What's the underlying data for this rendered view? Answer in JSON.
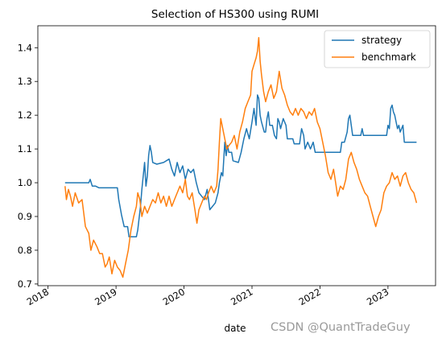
{
  "chart_data": {
    "type": "line",
    "title": "Selection of HS300 using RUMI",
    "xlabel": "date",
    "ylabel": "",
    "xlim": [
      2017.85,
      2023.7
    ],
    "ylim": [
      0.695,
      1.465
    ],
    "x_ticks": [
      {
        "value": 2018,
        "label": "2018"
      },
      {
        "value": 2019,
        "label": "2019"
      },
      {
        "value": 2020,
        "label": "2020"
      },
      {
        "value": 2021,
        "label": "2021"
      },
      {
        "value": 2022,
        "label": "2022"
      },
      {
        "value": 2023,
        "label": "2023"
      }
    ],
    "y_ticks": [
      {
        "value": 0.7,
        "label": "0.7"
      },
      {
        "value": 0.8,
        "label": "0.8"
      },
      {
        "value": 0.9,
        "label": "0.9"
      },
      {
        "value": 1.0,
        "label": "1.0"
      },
      {
        "value": 1.1,
        "label": "1.1"
      },
      {
        "value": 1.2,
        "label": "1.2"
      },
      {
        "value": 1.3,
        "label": "1.3"
      },
      {
        "value": 1.4,
        "label": "1.4"
      }
    ],
    "grid": false,
    "legend_position": "top-right",
    "series": [
      {
        "name": "strategy",
        "color": "#1f77b4",
        "points": [
          [
            2018.25,
            1.0
          ],
          [
            2018.6,
            1.0
          ],
          [
            2018.62,
            1.01
          ],
          [
            2018.65,
            0.99
          ],
          [
            2018.7,
            0.99
          ],
          [
            2018.75,
            0.985
          ],
          [
            2019.02,
            0.985
          ],
          [
            2019.04,
            0.95
          ],
          [
            2019.08,
            0.905
          ],
          [
            2019.12,
            0.87
          ],
          [
            2019.17,
            0.87
          ],
          [
            2019.19,
            0.84
          ],
          [
            2019.3,
            0.84
          ],
          [
            2019.32,
            0.86
          ],
          [
            2019.36,
            0.93
          ],
          [
            2019.38,
            0.98
          ],
          [
            2019.4,
            1.02
          ],
          [
            2019.42,
            1.06
          ],
          [
            2019.44,
            0.99
          ],
          [
            2019.46,
            1.02
          ],
          [
            2019.48,
            1.08
          ],
          [
            2019.5,
            1.11
          ],
          [
            2019.52,
            1.09
          ],
          [
            2019.54,
            1.06
          ],
          [
            2019.6,
            1.055
          ],
          [
            2019.7,
            1.06
          ],
          [
            2019.78,
            1.07
          ],
          [
            2019.82,
            1.04
          ],
          [
            2019.86,
            1.02
          ],
          [
            2019.9,
            1.06
          ],
          [
            2019.94,
            1.03
          ],
          [
            2019.98,
            1.05
          ],
          [
            2020.02,
            1.01
          ],
          [
            2020.06,
            1.04
          ],
          [
            2020.1,
            1.03
          ],
          [
            2020.14,
            1.04
          ],
          [
            2020.18,
            1.0
          ],
          [
            2020.22,
            0.97
          ],
          [
            2020.26,
            0.96
          ],
          [
            2020.3,
            0.95
          ],
          [
            2020.34,
            0.98
          ],
          [
            2020.38,
            0.92
          ],
          [
            2020.42,
            0.93
          ],
          [
            2020.46,
            0.94
          ],
          [
            2020.5,
            0.97
          ],
          [
            2020.52,
            1.0
          ],
          [
            2020.55,
            1.03
          ],
          [
            2020.57,
            1.02
          ],
          [
            2020.6,
            1.12
          ],
          [
            2020.62,
            1.08
          ],
          [
            2020.64,
            1.11
          ],
          [
            2020.66,
            1.09
          ],
          [
            2020.7,
            1.09
          ],
          [
            2020.72,
            1.065
          ],
          [
            2020.8,
            1.06
          ],
          [
            2020.84,
            1.09
          ],
          [
            2020.88,
            1.13
          ],
          [
            2020.92,
            1.16
          ],
          [
            2020.96,
            1.13
          ],
          [
            2021.0,
            1.18
          ],
          [
            2021.03,
            1.22
          ],
          [
            2021.06,
            1.17
          ],
          [
            2021.08,
            1.26
          ],
          [
            2021.1,
            1.25
          ],
          [
            2021.12,
            1.2
          ],
          [
            2021.14,
            1.18
          ],
          [
            2021.18,
            1.15
          ],
          [
            2021.2,
            1.15
          ],
          [
            2021.22,
            1.19
          ],
          [
            2021.24,
            1.21
          ],
          [
            2021.26,
            1.17
          ],
          [
            2021.3,
            1.17
          ],
          [
            2021.33,
            1.14
          ],
          [
            2021.36,
            1.13
          ],
          [
            2021.38,
            1.19
          ],
          [
            2021.4,
            1.18
          ],
          [
            2021.42,
            1.16
          ],
          [
            2021.46,
            1.19
          ],
          [
            2021.5,
            1.17
          ],
          [
            2021.52,
            1.13
          ],
          [
            2021.6,
            1.13
          ],
          [
            2021.62,
            1.115
          ],
          [
            2021.7,
            1.115
          ],
          [
            2021.73,
            1.16
          ],
          [
            2021.76,
            1.14
          ],
          [
            2021.78,
            1.1
          ],
          [
            2021.82,
            1.12
          ],
          [
            2021.86,
            1.1
          ],
          [
            2021.9,
            1.12
          ],
          [
            2021.93,
            1.09
          ],
          [
            2022.3,
            1.09
          ],
          [
            2022.32,
            1.12
          ],
          [
            2022.36,
            1.12
          ],
          [
            2022.4,
            1.15
          ],
          [
            2022.42,
            1.19
          ],
          [
            2022.44,
            1.2
          ],
          [
            2022.46,
            1.17
          ],
          [
            2022.48,
            1.14
          ],
          [
            2022.6,
            1.14
          ],
          [
            2022.62,
            1.16
          ],
          [
            2022.64,
            1.14
          ],
          [
            2022.98,
            1.14
          ],
          [
            2023.0,
            1.17
          ],
          [
            2023.02,
            1.16
          ],
          [
            2023.04,
            1.22
          ],
          [
            2023.06,
            1.23
          ],
          [
            2023.08,
            1.21
          ],
          [
            2023.1,
            1.2
          ],
          [
            2023.12,
            1.18
          ],
          [
            2023.14,
            1.16
          ],
          [
            2023.16,
            1.17
          ],
          [
            2023.18,
            1.15
          ],
          [
            2023.22,
            1.17
          ],
          [
            2023.24,
            1.12
          ],
          [
            2023.42,
            1.12
          ]
        ]
      },
      {
        "name": "benchmark",
        "color": "#ff7f0e",
        "points": [
          [
            2018.25,
            0.99
          ],
          [
            2018.27,
            0.95
          ],
          [
            2018.3,
            0.98
          ],
          [
            2018.33,
            0.96
          ],
          [
            2018.36,
            0.93
          ],
          [
            2018.4,
            0.97
          ],
          [
            2018.45,
            0.94
          ],
          [
            2018.5,
            0.95
          ],
          [
            2018.55,
            0.87
          ],
          [
            2018.6,
            0.85
          ],
          [
            2018.63,
            0.8
          ],
          [
            2018.67,
            0.83
          ],
          [
            2018.72,
            0.81
          ],
          [
            2018.76,
            0.79
          ],
          [
            2018.8,
            0.79
          ],
          [
            2018.84,
            0.75
          ],
          [
            2018.87,
            0.76
          ],
          [
            2018.9,
            0.78
          ],
          [
            2018.94,
            0.73
          ],
          [
            2018.98,
            0.77
          ],
          [
            2019.02,
            0.75
          ],
          [
            2019.06,
            0.74
          ],
          [
            2019.1,
            0.72
          ],
          [
            2019.14,
            0.76
          ],
          [
            2019.18,
            0.8
          ],
          [
            2019.22,
            0.86
          ],
          [
            2019.26,
            0.9
          ],
          [
            2019.3,
            0.93
          ],
          [
            2019.32,
            0.97
          ],
          [
            2019.35,
            0.95
          ],
          [
            2019.38,
            0.9
          ],
          [
            2019.42,
            0.93
          ],
          [
            2019.46,
            0.91
          ],
          [
            2019.5,
            0.93
          ],
          [
            2019.54,
            0.95
          ],
          [
            2019.58,
            0.94
          ],
          [
            2019.62,
            0.97
          ],
          [
            2019.66,
            0.94
          ],
          [
            2019.7,
            0.96
          ],
          [
            2019.74,
            0.93
          ],
          [
            2019.78,
            0.96
          ],
          [
            2019.82,
            0.93
          ],
          [
            2019.86,
            0.95
          ],
          [
            2019.9,
            0.97
          ],
          [
            2019.94,
            0.99
          ],
          [
            2019.98,
            0.97
          ],
          [
            2020.02,
            1.01
          ],
          [
            2020.05,
            0.96
          ],
          [
            2020.08,
            0.95
          ],
          [
            2020.12,
            0.97
          ],
          [
            2020.16,
            0.92
          ],
          [
            2020.19,
            0.88
          ],
          [
            2020.22,
            0.92
          ],
          [
            2020.26,
            0.94
          ],
          [
            2020.3,
            0.96
          ],
          [
            2020.33,
            0.95
          ],
          [
            2020.36,
            0.97
          ],
          [
            2020.4,
            0.99
          ],
          [
            2020.44,
            0.97
          ],
          [
            2020.48,
            0.99
          ],
          [
            2020.5,
            1.04
          ],
          [
            2020.52,
            1.12
          ],
          [
            2020.54,
            1.19
          ],
          [
            2020.57,
            1.16
          ],
          [
            2020.6,
            1.13
          ],
          [
            2020.63,
            1.1
          ],
          [
            2020.66,
            1.11
          ],
          [
            2020.7,
            1.12
          ],
          [
            2020.74,
            1.14
          ],
          [
            2020.78,
            1.1
          ],
          [
            2020.82,
            1.15
          ],
          [
            2020.86,
            1.18
          ],
          [
            2020.9,
            1.22
          ],
          [
            2020.94,
            1.24
          ],
          [
            2020.98,
            1.26
          ],
          [
            2021.0,
            1.33
          ],
          [
            2021.03,
            1.35
          ],
          [
            2021.06,
            1.37
          ],
          [
            2021.08,
            1.39
          ],
          [
            2021.1,
            1.43
          ],
          [
            2021.12,
            1.36
          ],
          [
            2021.14,
            1.32
          ],
          [
            2021.17,
            1.27
          ],
          [
            2021.2,
            1.24
          ],
          [
            2021.24,
            1.27
          ],
          [
            2021.28,
            1.29
          ],
          [
            2021.32,
            1.25
          ],
          [
            2021.36,
            1.27
          ],
          [
            2021.4,
            1.33
          ],
          [
            2021.44,
            1.28
          ],
          [
            2021.48,
            1.26
          ],
          [
            2021.52,
            1.23
          ],
          [
            2021.56,
            1.21
          ],
          [
            2021.6,
            1.2
          ],
          [
            2021.64,
            1.22
          ],
          [
            2021.68,
            1.2
          ],
          [
            2021.72,
            1.22
          ],
          [
            2021.76,
            1.21
          ],
          [
            2021.8,
            1.19
          ],
          [
            2021.84,
            1.21
          ],
          [
            2021.88,
            1.2
          ],
          [
            2021.92,
            1.22
          ],
          [
            2021.96,
            1.18
          ],
          [
            2022.0,
            1.16
          ],
          [
            2022.04,
            1.12
          ],
          [
            2022.08,
            1.08
          ],
          [
            2022.12,
            1.03
          ],
          [
            2022.16,
            1.01
          ],
          [
            2022.2,
            1.04
          ],
          [
            2022.23,
            1.0
          ],
          [
            2022.26,
            0.96
          ],
          [
            2022.3,
            0.99
          ],
          [
            2022.34,
            0.98
          ],
          [
            2022.38,
            1.01
          ],
          [
            2022.42,
            1.07
          ],
          [
            2022.46,
            1.09
          ],
          [
            2022.5,
            1.06
          ],
          [
            2022.54,
            1.04
          ],
          [
            2022.58,
            1.01
          ],
          [
            2022.62,
            0.99
          ],
          [
            2022.66,
            0.97
          ],
          [
            2022.7,
            0.96
          ],
          [
            2022.74,
            0.93
          ],
          [
            2022.78,
            0.9
          ],
          [
            2022.82,
            0.87
          ],
          [
            2022.86,
            0.9
          ],
          [
            2022.9,
            0.92
          ],
          [
            2022.94,
            0.97
          ],
          [
            2022.98,
            0.99
          ],
          [
            2023.02,
            1.0
          ],
          [
            2023.06,
            1.03
          ],
          [
            2023.1,
            1.01
          ],
          [
            2023.14,
            1.02
          ],
          [
            2023.18,
            0.99
          ],
          [
            2023.22,
            1.02
          ],
          [
            2023.26,
            1.03
          ],
          [
            2023.3,
            1.0
          ],
          [
            2023.34,
            0.98
          ],
          [
            2023.38,
            0.97
          ],
          [
            2023.42,
            0.94
          ]
        ]
      }
    ]
  },
  "watermark": "CSDN @QuantTradeGuy"
}
